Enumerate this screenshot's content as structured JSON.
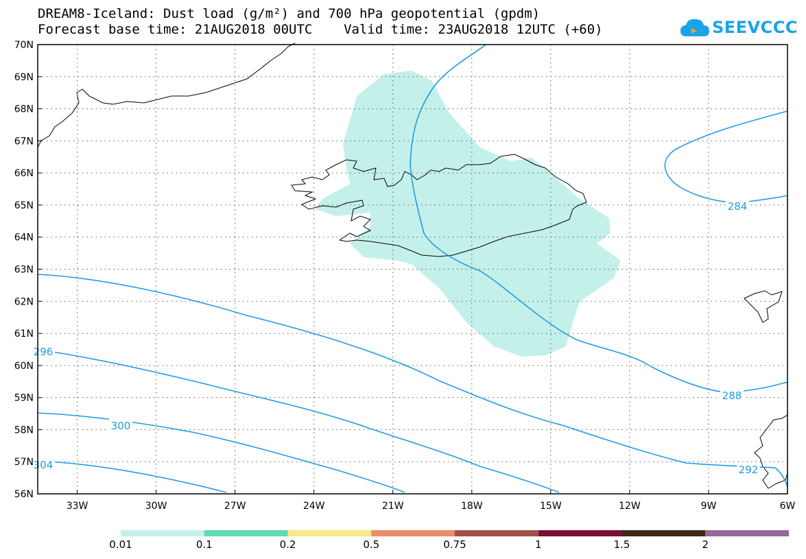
{
  "header": {
    "title_line1": "DREAM8-Iceland: Dust load (g/m²) and 700 hPa geopotential (gpdm)",
    "title_line2": "Forecast base time: 21AUG2018 00UTC    Valid time: 23AUG2018 12UTC (+60)",
    "logo_text": "SEEVCCC",
    "logo_icon": "cloud-icon"
  },
  "map": {
    "lon_range": [
      -34.5,
      -6.0
    ],
    "lat_range": [
      56.0,
      70.0
    ],
    "grid": "dotted",
    "lat_labels": [
      "56N",
      "57N",
      "58N",
      "59N",
      "60N",
      "61N",
      "62N",
      "63N",
      "64N",
      "65N",
      "66N",
      "67N",
      "68N",
      "69N",
      "70N"
    ],
    "lon_labels": [
      "33W",
      "30W",
      "27W",
      "24W",
      "21W",
      "18W",
      "15W",
      "12W",
      "9W",
      "6W"
    ],
    "contour_color": "#1f9be6",
    "contour_labels": [
      "284",
      "288",
      "292",
      "296",
      "300",
      "304"
    ],
    "dust_fill_color": "#c4f0ea",
    "regions": [
      "Greenland coast",
      "Iceland",
      "Faroe Islands",
      "Scotland"
    ]
  },
  "colorbar": {
    "colors": [
      "#c4f0ea",
      "#5fdcb0",
      "#f7e88a",
      "#e98d6b",
      "#9e524a",
      "#7a0e34",
      "#3b2a16",
      "#97679b"
    ],
    "labels": [
      "0.01",
      "0.1",
      "0.2",
      "0.5",
      "0.75",
      "1",
      "1.5",
      "2"
    ]
  }
}
